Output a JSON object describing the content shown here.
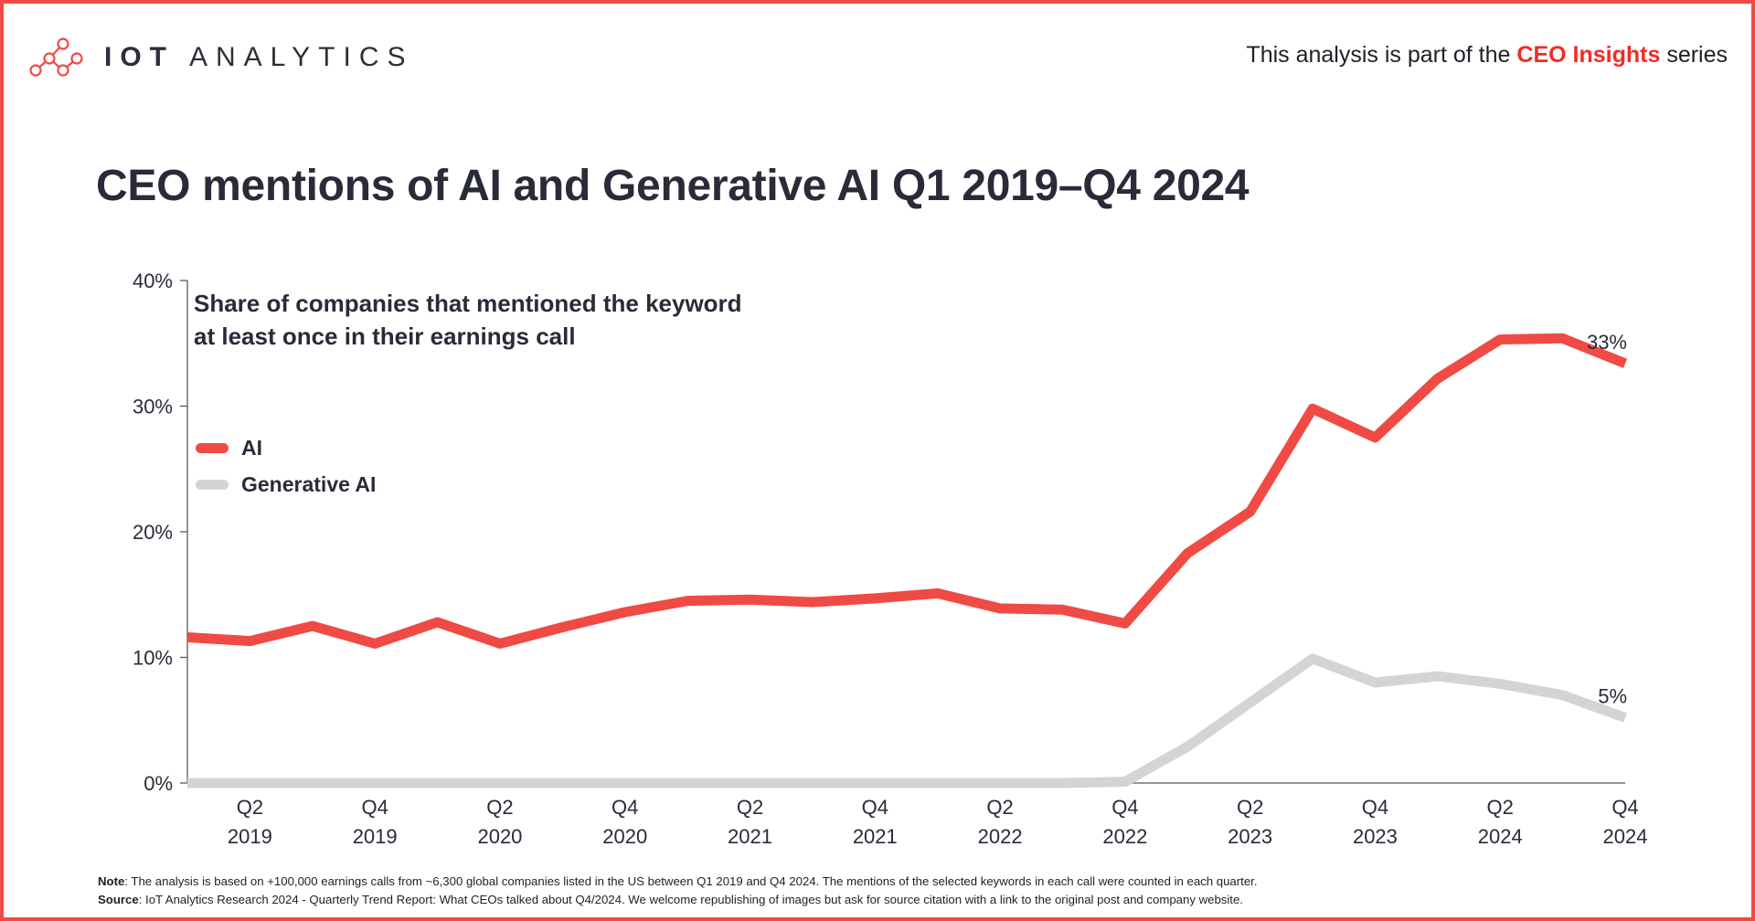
{
  "header": {
    "logo_primary": "IOT",
    "logo_secondary": "ANALYTICS",
    "series_prefix": "This analysis is part of the",
    "series_highlight": "CEO Insights",
    "series_suffix": "series"
  },
  "colors": {
    "frame": "#f04a45",
    "ai": "#f04a45",
    "generative_ai": "#d4d4d4",
    "highlight_text": "#f22b26"
  },
  "chart_data": {
    "type": "line",
    "title": "CEO mentions of AI and Generative AI Q1 2019–Q4 2024",
    "subtitle_lines": [
      "Share of companies that mentioned the keyword",
      "at least once in their earnings call"
    ],
    "x": [
      "Q1 2019",
      "Q2 2019",
      "Q3 2019",
      "Q4 2019",
      "Q1 2020",
      "Q2 2020",
      "Q3 2020",
      "Q4 2020",
      "Q1 2021",
      "Q2 2021",
      "Q3 2021",
      "Q4 2021",
      "Q1 2022",
      "Q2 2022",
      "Q3 2022",
      "Q4 2022",
      "Q1 2023",
      "Q2 2023",
      "Q3 2023",
      "Q4 2023",
      "Q1 2024",
      "Q2 2024",
      "Q3 2024",
      "Q4 2024"
    ],
    "x_tick_labels": [
      {
        "index": 1,
        "quarter": "Q2",
        "year": "2019"
      },
      {
        "index": 3,
        "quarter": "Q4",
        "year": "2019"
      },
      {
        "index": 5,
        "quarter": "Q2",
        "year": "2020"
      },
      {
        "index": 7,
        "quarter": "Q4",
        "year": "2020"
      },
      {
        "index": 9,
        "quarter": "Q2",
        "year": "2021"
      },
      {
        "index": 11,
        "quarter": "Q4",
        "year": "2021"
      },
      {
        "index": 13,
        "quarter": "Q2",
        "year": "2022"
      },
      {
        "index": 15,
        "quarter": "Q4",
        "year": "2022"
      },
      {
        "index": 17,
        "quarter": "Q2",
        "year": "2023"
      },
      {
        "index": 19,
        "quarter": "Q4",
        "year": "2023"
      },
      {
        "index": 21,
        "quarter": "Q2",
        "year": "2024"
      },
      {
        "index": 23,
        "quarter": "Q4",
        "year": "2024"
      }
    ],
    "y_ticks": [
      0,
      10,
      20,
      30,
      40
    ],
    "y_tick_labels": [
      "0%",
      "10%",
      "20%",
      "30%",
      "40%"
    ],
    "ylim": [
      0,
      40
    ],
    "y_unit": "%",
    "grid": false,
    "legend_position": "left",
    "series": [
      {
        "name": "AI",
        "color": "#f04a45",
        "values": [
          11.6,
          11.3,
          12.5,
          11.1,
          12.8,
          11.1,
          12.4,
          13.6,
          14.5,
          14.6,
          14.4,
          14.7,
          15.1,
          13.9,
          13.8,
          12.7,
          18.3,
          21.6,
          29.8,
          27.5,
          32.2,
          35.3,
          35.4,
          33.4
        ],
        "end_label": "33%"
      },
      {
        "name": "Generative AI",
        "color": "#d4d4d4",
        "values": [
          0,
          0,
          0,
          0,
          0,
          0,
          0,
          0,
          0,
          0,
          0,
          0,
          0,
          0,
          0,
          0.1,
          2.9,
          6.4,
          9.9,
          8.0,
          8.5,
          7.9,
          7.0,
          5.2
        ],
        "end_label": "5%"
      }
    ]
  },
  "footnote": {
    "note_label": "Note",
    "note_text": ": The analysis is based on +100,000 earnings calls from ~6,300 global companies listed in the US between Q1 2019 and Q4 2024. The mentions of the selected keywords in each call were counted in each quarter.",
    "source_label": "Source",
    "source_text": ": IoT Analytics Research 2024 - Quarterly Trend Report: What CEOs talked about Q4/2024. We welcome republishing of images but ask for source citation with a link to the original post and company website."
  }
}
